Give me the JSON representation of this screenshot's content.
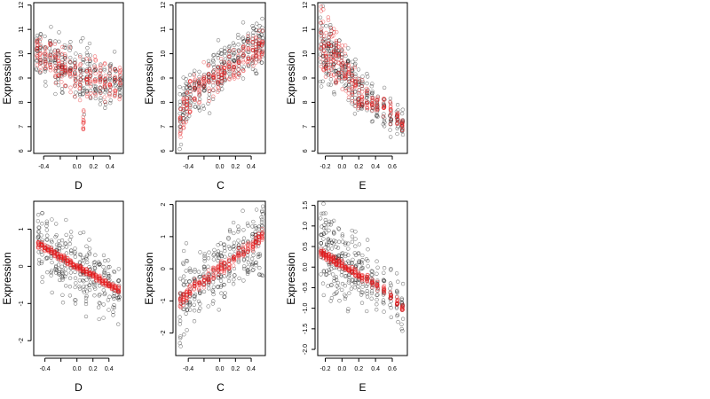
{
  "chart_data": [
    {
      "type": "scatter",
      "xlabel": "D",
      "ylabel": "Expression",
      "xlim": [
        -0.52,
        0.56
      ],
      "ylim": [
        5.9,
        12.1
      ],
      "xticks": [
        -0.4,
        -0.2,
        0.0,
        0.2,
        0.4
      ],
      "xticklabels": [
        "-0.4",
        "",
        "0.0",
        "0.2",
        "0.4"
      ],
      "yticks": [
        6,
        7,
        8,
        9,
        10,
        11,
        12
      ],
      "yticklabels": [
        "6",
        "7",
        "8",
        "9",
        "10",
        "11",
        "12"
      ],
      "cloud": {
        "x": [
          -0.48,
          -0.44,
          -0.38,
          -0.32,
          -0.26,
          -0.22,
          -0.18,
          -0.14,
          -0.08,
          -0.02,
          0.04,
          0.08,
          0.12,
          0.16,
          0.22,
          0.28,
          0.34,
          0.4,
          0.46,
          0.52
        ],
        "center": [
          10.1,
          10.0,
          9.9,
          9.8,
          9.6,
          9.5,
          9.5,
          9.4,
          9.4,
          9.3,
          9.2,
          9.1,
          9.0,
          9.1,
          9.0,
          8.9,
          8.9,
          8.8,
          8.8,
          8.7
        ],
        "spread": [
          1.4,
          1.4,
          1.4,
          1.5,
          1.5,
          1.5,
          1.5,
          1.5,
          1.5,
          1.6,
          1.6,
          1.8,
          1.7,
          1.7,
          1.6,
          1.5,
          1.5,
          1.4,
          1.4,
          1.4
        ]
      },
      "fit": {
        "x": [
          -0.48,
          -0.44,
          -0.38,
          -0.32,
          -0.26,
          -0.22,
          -0.18,
          -0.14,
          -0.08,
          -0.02,
          0.04,
          0.08,
          0.12,
          0.16,
          0.22,
          0.28,
          0.34,
          0.4,
          0.46,
          0.52
        ],
        "center": [
          10.0,
          10.0,
          9.9,
          9.8,
          9.6,
          9.4,
          9.3,
          9.2,
          9.3,
          9.1,
          9.0,
          7.3,
          9.0,
          9.0,
          8.9,
          9.0,
          8.9,
          8.9,
          8.9,
          8.9
        ],
        "spread": [
          0.9,
          0.9,
          1.0,
          1.0,
          1.1,
          1.1,
          1.1,
          1.1,
          1.1,
          1.1,
          1.1,
          0.5,
          1.1,
          1.1,
          1.1,
          1.0,
          1.0,
          0.9,
          0.9,
          0.9
        ]
      }
    },
    {
      "type": "scatter",
      "xlabel": "C",
      "ylabel": "Expression",
      "xlim": [
        -0.56,
        0.58
      ],
      "ylim": [
        5.9,
        12.1
      ],
      "xticks": [
        -0.4,
        -0.2,
        0.0,
        0.2,
        0.4
      ],
      "xticklabels": [
        "-0.4",
        "",
        "0.0",
        "0.2",
        "0.4"
      ],
      "yticks": [
        6,
        7,
        8,
        9,
        10,
        11,
        12
      ],
      "yticklabels": [
        "6",
        "7",
        "8",
        "9",
        "10",
        "11",
        "12"
      ],
      "cloud": {
        "x": [
          -0.5,
          -0.46,
          -0.42,
          -0.38,
          -0.32,
          -0.26,
          -0.2,
          -0.14,
          -0.08,
          -0.02,
          0.02,
          0.06,
          0.12,
          0.18,
          0.24,
          0.3,
          0.36,
          0.42,
          0.46,
          0.5,
          0.54
        ],
        "center": [
          7.4,
          7.8,
          8.1,
          8.3,
          8.5,
          8.7,
          8.9,
          9.0,
          9.2,
          9.3,
          9.5,
          9.6,
          9.6,
          9.7,
          9.8,
          10.0,
          10.1,
          10.2,
          10.3,
          10.4,
          10.5
        ],
        "spread": [
          1.6,
          1.6,
          1.6,
          1.6,
          1.5,
          1.5,
          1.5,
          1.6,
          1.6,
          1.7,
          1.7,
          1.6,
          1.6,
          1.5,
          1.5,
          1.5,
          1.5,
          1.6,
          1.6,
          1.6,
          1.6
        ]
      },
      "fit": {
        "x": [
          -0.5,
          -0.46,
          -0.42,
          -0.38,
          -0.32,
          -0.26,
          -0.2,
          -0.14,
          -0.08,
          -0.02,
          0.02,
          0.06,
          0.12,
          0.18,
          0.24,
          0.3,
          0.36,
          0.42,
          0.46,
          0.5,
          0.54
        ],
        "center": [
          7.2,
          7.6,
          8.0,
          8.2,
          8.4,
          8.6,
          8.8,
          8.8,
          9.0,
          9.0,
          9.1,
          9.3,
          9.4,
          9.5,
          9.7,
          9.8,
          10.0,
          10.1,
          10.2,
          10.3,
          10.4
        ],
        "spread": [
          0.8,
          0.9,
          0.9,
          0.9,
          0.9,
          0.9,
          0.9,
          0.9,
          0.9,
          0.9,
          0.9,
          0.9,
          0.9,
          0.9,
          0.9,
          0.9,
          0.9,
          0.9,
          0.9,
          0.8,
          0.8
        ]
      }
    },
    {
      "type": "scatter",
      "xlabel": "E",
      "ylabel": "Expression",
      "xlim": [
        -0.29,
        0.78
      ],
      "ylim": [
        5.9,
        12.1
      ],
      "xticks": [
        -0.2,
        0.0,
        0.2,
        0.4,
        0.6
      ],
      "xticklabels": [
        "-0.2",
        "0.0",
        "0.2",
        "0.4",
        "0.6"
      ],
      "yticks": [
        6,
        7,
        8,
        9,
        10,
        11,
        12
      ],
      "yticklabels": [
        "6",
        "7",
        "8",
        "9",
        "10",
        "11",
        "12"
      ],
      "cloud": {
        "x": [
          -0.25,
          -0.22,
          -0.19,
          -0.16,
          -0.13,
          -0.1,
          -0.07,
          -0.04,
          0.0,
          0.04,
          0.08,
          0.12,
          0.16,
          0.2,
          0.24,
          0.3,
          0.36,
          0.42,
          0.5,
          0.58,
          0.66,
          0.72
        ],
        "center": [
          10.3,
          10.2,
          10.1,
          10.0,
          9.9,
          9.8,
          9.7,
          9.6,
          9.4,
          9.2,
          9.0,
          8.9,
          8.7,
          8.5,
          8.4,
          8.2,
          8.0,
          7.9,
          7.7,
          7.5,
          7.3,
          7.1
        ],
        "spread": [
          2.8,
          2.6,
          2.4,
          2.2,
          2.0,
          2.0,
          1.8,
          1.6,
          1.6,
          1.6,
          1.6,
          1.5,
          1.5,
          1.5,
          1.4,
          1.2,
          1.2,
          1.2,
          1.2,
          1.2,
          1.0,
          1.0
        ]
      },
      "fit": {
        "x": [
          -0.25,
          -0.22,
          -0.19,
          -0.16,
          -0.13,
          -0.1,
          -0.07,
          -0.04,
          0.0,
          0.04,
          0.08,
          0.12,
          0.16,
          0.2,
          0.24,
          0.3,
          0.36,
          0.42,
          0.5,
          0.58,
          0.66,
          0.72
        ],
        "center": [
          10.5,
          10.4,
          10.3,
          10.2,
          10.1,
          10.0,
          9.8,
          9.7,
          9.5,
          9.3,
          9.0,
          8.8,
          8.6,
          8.4,
          8.2,
          8.1,
          8.0,
          7.9,
          7.8,
          7.6,
          7.4,
          7.1
        ],
        "spread": [
          1.6,
          1.6,
          1.5,
          1.5,
          1.4,
          1.4,
          1.3,
          1.3,
          1.2,
          1.2,
          1.1,
          1.0,
          1.0,
          0.9,
          0.8,
          0.7,
          0.6,
          0.6,
          0.5,
          0.5,
          0.4,
          0.3
        ]
      }
    },
    {
      "type": "scatter",
      "xlabel": "D",
      "ylabel": "Expression",
      "xlim": [
        -0.54,
        0.58
      ],
      "ylim": [
        -2.4,
        1.75
      ],
      "xticks": [
        -0.4,
        -0.2,
        0.0,
        0.2,
        0.4
      ],
      "xticklabels": [
        "-0.4",
        "",
        "0.0",
        "0.2",
        "0.4"
      ],
      "yticks": [
        -2,
        -1,
        0,
        1
      ],
      "yticklabels": [
        "-2",
        "-1",
        "0",
        "1"
      ],
      "cloud": {
        "x": [
          -0.48,
          -0.44,
          -0.38,
          -0.32,
          -0.26,
          -0.22,
          -0.18,
          -0.14,
          -0.08,
          -0.02,
          0.04,
          0.08,
          0.12,
          0.16,
          0.22,
          0.28,
          0.34,
          0.4,
          0.46,
          0.52
        ],
        "center": [
          0.7,
          0.6,
          0.5,
          0.4,
          0.3,
          0.25,
          0.2,
          0.15,
          0.1,
          0.0,
          -0.05,
          -0.1,
          -0.15,
          -0.2,
          -0.3,
          -0.4,
          -0.45,
          -0.55,
          -0.7,
          -0.8
        ],
        "spread": [
          1.3,
          1.3,
          1.3,
          1.3,
          1.4,
          1.4,
          1.4,
          1.4,
          1.4,
          1.5,
          1.5,
          1.5,
          1.5,
          1.5,
          1.5,
          1.4,
          1.4,
          1.3,
          1.3,
          1.3
        ]
      },
      "fit": {
        "x": [
          -0.48,
          -0.44,
          -0.4,
          -0.36,
          -0.32,
          -0.28,
          -0.24,
          -0.2,
          -0.16,
          -0.12,
          -0.08,
          -0.04,
          0.0,
          0.04,
          0.08,
          0.12,
          0.16,
          0.2,
          0.24,
          0.28,
          0.32,
          0.36,
          0.4,
          0.44,
          0.48,
          0.52
        ],
        "center": [
          0.6,
          0.55,
          0.5,
          0.45,
          0.4,
          0.35,
          0.3,
          0.25,
          0.2,
          0.15,
          0.1,
          0.05,
          0.0,
          -0.05,
          -0.1,
          -0.15,
          -0.2,
          -0.25,
          -0.3,
          -0.35,
          -0.4,
          -0.45,
          -0.5,
          -0.55,
          -0.6,
          -0.65
        ],
        "spread": [
          0.12,
          0.12,
          0.12,
          0.12,
          0.12,
          0.12,
          0.12,
          0.12,
          0.12,
          0.12,
          0.12,
          0.12,
          0.12,
          0.12,
          0.12,
          0.12,
          0.12,
          0.12,
          0.12,
          0.12,
          0.12,
          0.12,
          0.12,
          0.12,
          0.12,
          0.12
        ]
      }
    },
    {
      "type": "scatter",
      "xlabel": "C",
      "ylabel": "Expression",
      "xlim": [
        -0.56,
        0.58
      ],
      "ylim": [
        -2.7,
        2.1
      ],
      "xticks": [
        -0.4,
        -0.2,
        0.0,
        0.2,
        0.4
      ],
      "xticklabels": [
        "-0.4",
        "",
        "0.0",
        "0.2",
        "0.4"
      ],
      "yticks": [
        -2,
        -1,
        0,
        1,
        2
      ],
      "yticklabels": [
        "-2",
        "-1",
        "0",
        "1",
        "2"
      ],
      "cloud": {
        "x": [
          -0.5,
          -0.46,
          -0.42,
          -0.38,
          -0.32,
          -0.26,
          -0.2,
          -0.14,
          -0.08,
          -0.02,
          0.02,
          0.06,
          0.12,
          0.18,
          0.24,
          0.3,
          0.36,
          0.42,
          0.46,
          0.5,
          0.54
        ],
        "center": [
          -1.0,
          -0.9,
          -0.8,
          -0.7,
          -0.55,
          -0.45,
          -0.3,
          -0.2,
          -0.1,
          0.0,
          0.05,
          0.1,
          0.2,
          0.3,
          0.4,
          0.55,
          0.65,
          0.8,
          0.9,
          1.0,
          1.1
        ],
        "spread": [
          2.0,
          2.0,
          1.8,
          1.8,
          1.6,
          1.6,
          1.6,
          1.6,
          1.6,
          1.6,
          1.6,
          1.6,
          1.6,
          1.6,
          1.6,
          1.6,
          1.6,
          1.6,
          1.8,
          1.8,
          1.8
        ]
      },
      "fit": {
        "x": [
          -0.5,
          -0.46,
          -0.42,
          -0.38,
          -0.32,
          -0.26,
          -0.2,
          -0.14,
          -0.08,
          -0.02,
          0.02,
          0.06,
          0.12,
          0.18,
          0.24,
          0.3,
          0.36,
          0.42,
          0.46,
          0.5,
          0.54
        ],
        "center": [
          -1.0,
          -0.9,
          -0.8,
          -0.7,
          -0.55,
          -0.45,
          -0.35,
          -0.25,
          -0.1,
          -0.05,
          0.05,
          0.1,
          0.2,
          0.3,
          0.45,
          0.55,
          0.65,
          0.75,
          0.85,
          0.95,
          1.0
        ],
        "spread": [
          0.25,
          0.25,
          0.25,
          0.25,
          0.25,
          0.25,
          0.25,
          0.25,
          0.25,
          0.25,
          0.25,
          0.25,
          0.25,
          0.25,
          0.25,
          0.25,
          0.25,
          0.25,
          0.25,
          0.25,
          0.25
        ]
      }
    },
    {
      "type": "scatter",
      "xlabel": "E",
      "ylabel": "Expression",
      "xlim": [
        -0.29,
        0.78
      ],
      "ylim": [
        -2.15,
        1.6
      ],
      "xticks": [
        -0.2,
        0.0,
        0.2,
        0.4,
        0.6
      ],
      "xticklabels": [
        "-0.2",
        "0.0",
        "0.2",
        "0.4",
        "0.6"
      ],
      "yticks": [
        -2.0,
        -1.5,
        -1.0,
        -0.5,
        0.0,
        0.5,
        1.0,
        1.5
      ],
      "yticklabels": [
        "-2.0",
        "-1.5",
        "-1.0",
        "-0.5",
        "0.0",
        "0.5",
        "1.0",
        "1.5"
      ],
      "cloud": {
        "x": [
          -0.25,
          -0.22,
          -0.19,
          -0.16,
          -0.13,
          -0.1,
          -0.07,
          -0.04,
          0.0,
          0.04,
          0.08,
          0.12,
          0.16,
          0.2,
          0.24,
          0.3,
          0.36,
          0.42,
          0.5,
          0.58,
          0.66,
          0.72
        ],
        "center": [
          0.5,
          0.45,
          0.4,
          0.35,
          0.3,
          0.25,
          0.2,
          0.15,
          0.1,
          0.05,
          0.0,
          -0.05,
          -0.1,
          -0.15,
          -0.2,
          -0.3,
          -0.35,
          -0.45,
          -0.55,
          -0.7,
          -0.85,
          -1.0
        ],
        "spread": [
          1.6,
          1.6,
          1.6,
          1.6,
          1.5,
          1.5,
          1.5,
          1.4,
          1.4,
          1.4,
          1.3,
          1.3,
          1.3,
          1.2,
          1.2,
          1.2,
          1.1,
          1.1,
          1.0,
          1.0,
          1.0,
          1.0
        ]
      },
      "fit": {
        "x": [
          -0.25,
          -0.22,
          -0.19,
          -0.16,
          -0.13,
          -0.1,
          -0.07,
          -0.04,
          0.0,
          0.04,
          0.08,
          0.12,
          0.16,
          0.2,
          0.24,
          0.3,
          0.36,
          0.42,
          0.5,
          0.58,
          0.66,
          0.72
        ],
        "center": [
          0.35,
          0.3,
          0.27,
          0.24,
          0.2,
          0.17,
          0.14,
          0.1,
          0.05,
          0.0,
          -0.05,
          -0.1,
          -0.15,
          -0.2,
          -0.25,
          -0.3,
          -0.38,
          -0.45,
          -0.55,
          -0.7,
          -0.85,
          -1.0
        ],
        "spread": [
          0.12,
          0.12,
          0.12,
          0.12,
          0.12,
          0.12,
          0.12,
          0.12,
          0.12,
          0.12,
          0.12,
          0.12,
          0.12,
          0.12,
          0.12,
          0.12,
          0.12,
          0.12,
          0.12,
          0.12,
          0.12,
          0.12
        ]
      }
    }
  ],
  "colors": {
    "observed": "#000000",
    "fitted": "#e8191b"
  }
}
